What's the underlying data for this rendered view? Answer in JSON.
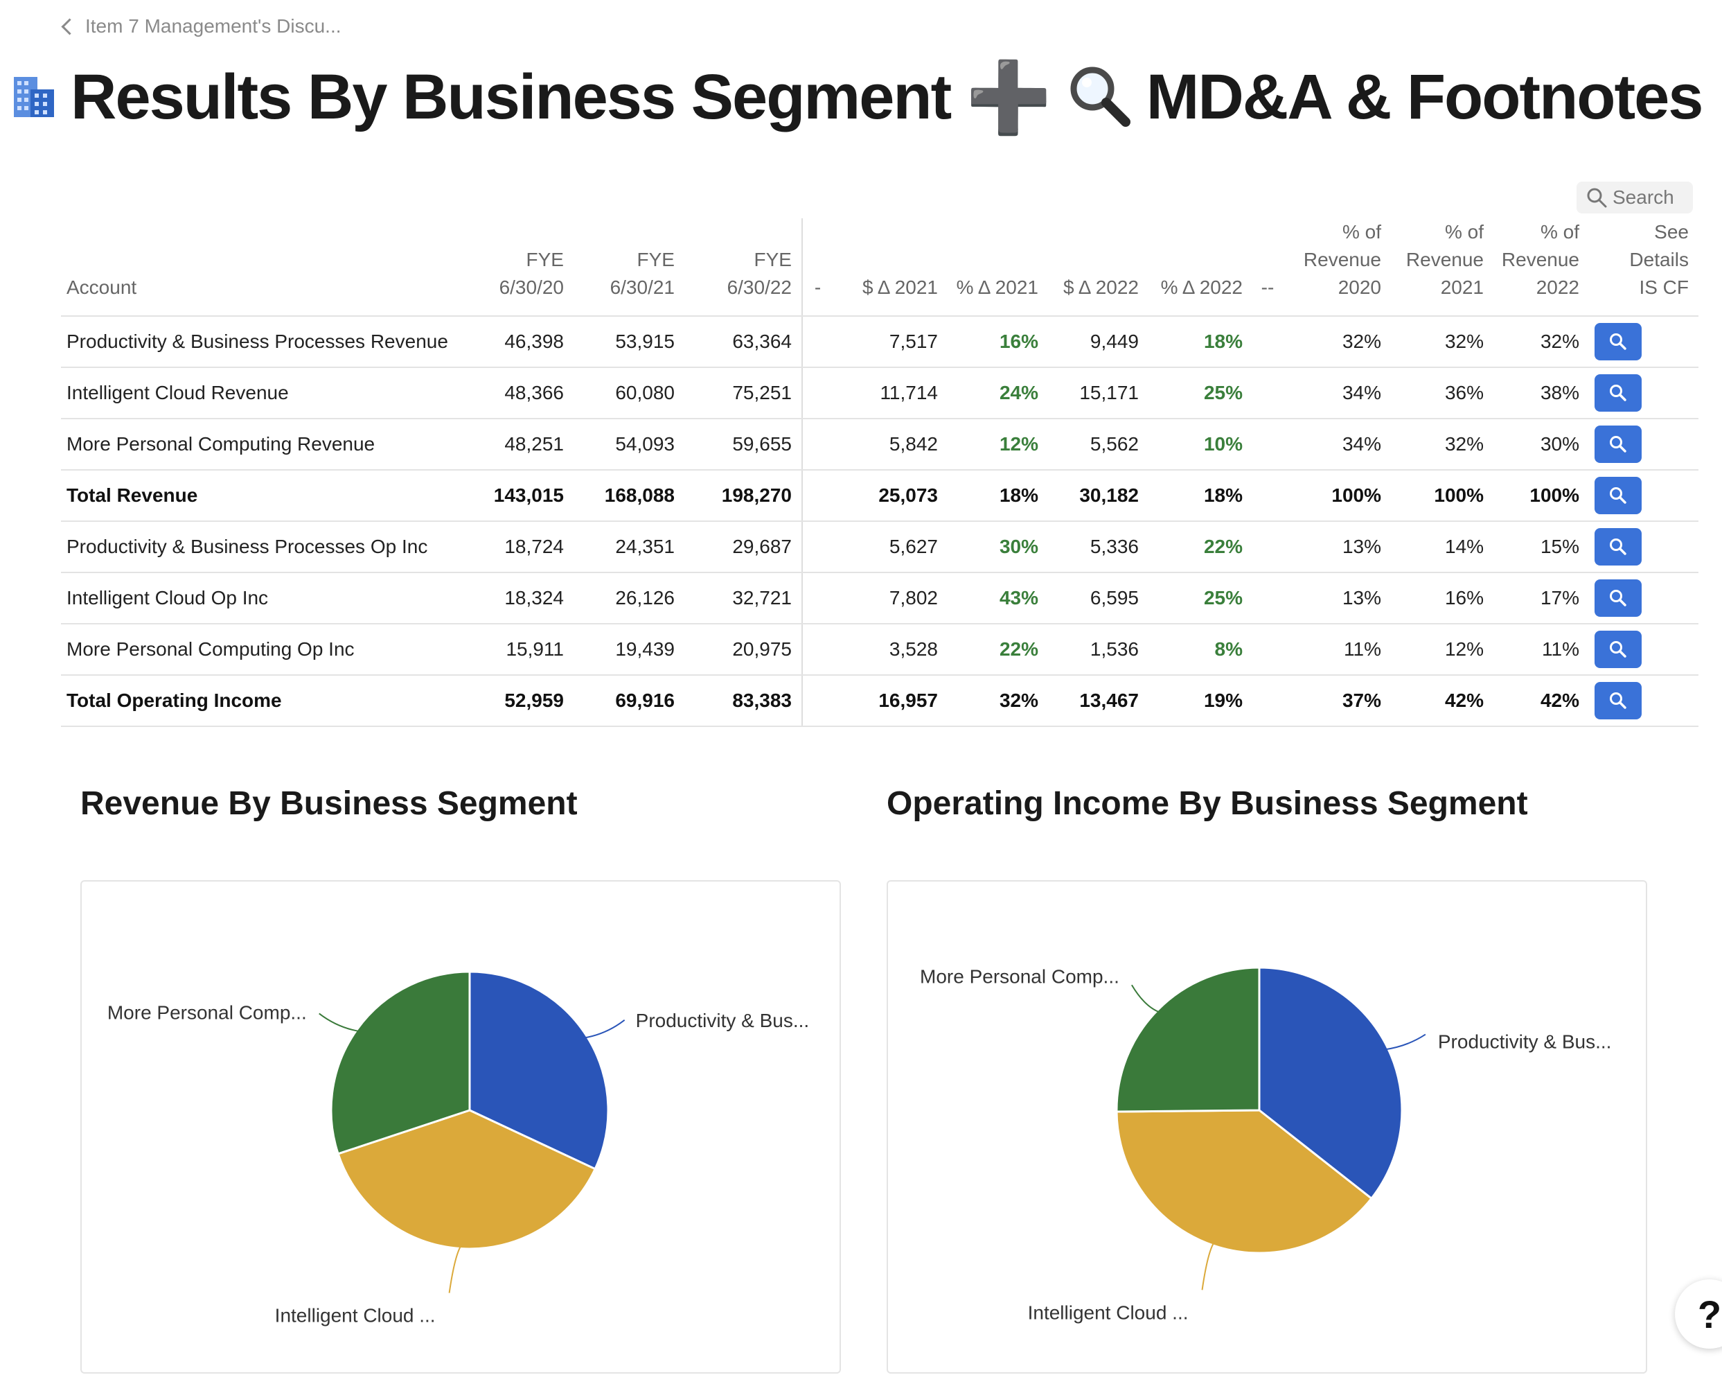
{
  "breadcrumb": {
    "label": "Item 7 Management's Discu..."
  },
  "header": {
    "title_part1": "Results By Business Segment",
    "plus": "➕",
    "title_part2": "MD&A & Footnotes"
  },
  "search": {
    "label": "Search"
  },
  "table": {
    "columns": [
      {
        "lines": [
          "Account"
        ]
      },
      {
        "lines": [
          "FYE",
          "6/30/20"
        ]
      },
      {
        "lines": [
          "FYE",
          "6/30/21"
        ]
      },
      {
        "lines": [
          "FYE",
          "6/30/22"
        ]
      },
      {
        "lines": [
          "-"
        ]
      },
      {
        "lines": [
          "$ Δ 2021"
        ]
      },
      {
        "lines": [
          "% Δ 2021"
        ]
      },
      {
        "lines": [
          "$ Δ 2022"
        ]
      },
      {
        "lines": [
          "% Δ 2022"
        ]
      },
      {
        "lines": [
          "--"
        ]
      },
      {
        "lines": [
          "% of",
          "Revenue",
          "2020"
        ]
      },
      {
        "lines": [
          "% of",
          "Revenue",
          "2021"
        ]
      },
      {
        "lines": [
          "% of",
          "Revenue",
          "2022"
        ]
      },
      {
        "lines": [
          "See",
          "Details",
          "IS CF"
        ]
      }
    ],
    "rows": [
      {
        "bold": false,
        "cells": [
          "Productivity & Business Processes Revenue",
          "46,398",
          "53,915",
          "63,364",
          "",
          "7,517",
          "16%",
          "9,449",
          "18%",
          "",
          "32%",
          "32%",
          "32%"
        ]
      },
      {
        "bold": false,
        "cells": [
          "Intelligent Cloud Revenue",
          "48,366",
          "60,080",
          "75,251",
          "",
          "11,714",
          "24%",
          "15,171",
          "25%",
          "",
          "34%",
          "36%",
          "38%"
        ]
      },
      {
        "bold": false,
        "cells": [
          "More Personal Computing Revenue",
          "48,251",
          "54,093",
          "59,655",
          "",
          "5,842",
          "12%",
          "5,562",
          "10%",
          "",
          "34%",
          "32%",
          "30%"
        ]
      },
      {
        "bold": true,
        "cells": [
          "Total Revenue",
          "143,015",
          "168,088",
          "198,270",
          "",
          "25,073",
          "18%",
          "30,182",
          "18%",
          "",
          "100%",
          "100%",
          "100%"
        ]
      },
      {
        "bold": false,
        "cells": [
          "Productivity & Business Processes Op Inc",
          "18,724",
          "24,351",
          "29,687",
          "",
          "5,627",
          "30%",
          "5,336",
          "22%",
          "",
          "13%",
          "14%",
          "15%"
        ]
      },
      {
        "bold": false,
        "cells": [
          "Intelligent Cloud Op Inc",
          "18,324",
          "26,126",
          "32,721",
          "",
          "7,802",
          "43%",
          "6,595",
          "25%",
          "",
          "13%",
          "16%",
          "17%"
        ]
      },
      {
        "bold": false,
        "cells": [
          "More Personal Computing Op Inc",
          "15,911",
          "19,439",
          "20,975",
          "",
          "3,528",
          "22%",
          "1,536",
          "8%",
          "",
          "11%",
          "12%",
          "11%"
        ]
      },
      {
        "bold": true,
        "cells": [
          "Total Operating Income",
          "52,959",
          "69,916",
          "83,383",
          "",
          "16,957",
          "32%",
          "13,467",
          "19%",
          "",
          "37%",
          "42%",
          "42%"
        ]
      }
    ]
  },
  "chart_data": [
    {
      "type": "pie",
      "title": "Revenue By Business Segment",
      "labels": [
        "Productivity & Bus...",
        "Intelligent Cloud ...",
        "More Personal Comp..."
      ],
      "values": [
        63364,
        75251,
        59655
      ],
      "colors": [
        "#2a55b8",
        "#dba93a",
        "#3a7a3a"
      ]
    },
    {
      "type": "pie",
      "title": "Operating Income By Business Segment",
      "labels": [
        "Productivity & Bus...",
        "Intelligent Cloud ...",
        "More Personal Comp..."
      ],
      "values": [
        29687,
        32721,
        20975
      ],
      "colors": [
        "#2a55b8",
        "#dba93a",
        "#3a7a3a"
      ]
    }
  ],
  "help": {
    "label": "?"
  }
}
